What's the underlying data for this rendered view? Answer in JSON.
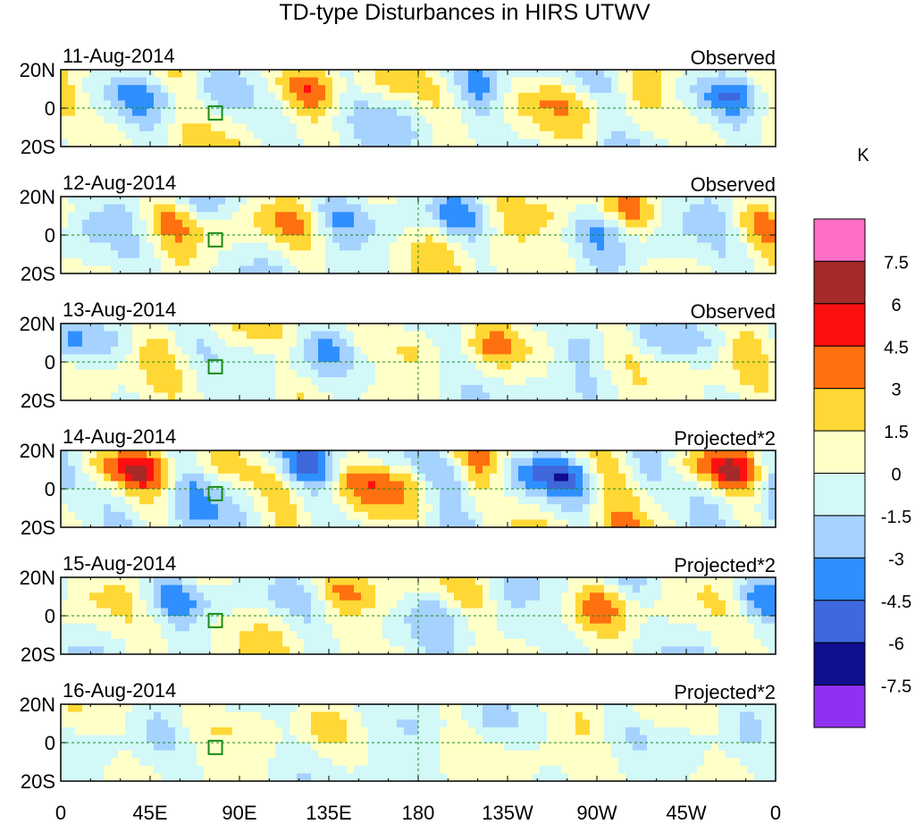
{
  "chart_data": {
    "type": "heatmap",
    "title": "TD-type Disturbances in HIRS UTWV",
    "units_label": "K",
    "x_ticks": [
      "0",
      "45E",
      "90E",
      "135E",
      "180",
      "135W",
      "90W",
      "45W",
      "0"
    ],
    "x_range_deg": [
      0,
      360
    ],
    "y_ticks": [
      "20N",
      "0",
      "20S"
    ],
    "y_range_deg": [
      -20,
      20
    ],
    "panels": [
      {
        "date": "11-Aug-2014",
        "label": "Observed",
        "amp": 1.0,
        "seed": 1
      },
      {
        "date": "12-Aug-2014",
        "label": "Observed",
        "amp": 1.0,
        "seed": 2
      },
      {
        "date": "13-Aug-2014",
        "label": "Observed",
        "amp": 0.8,
        "seed": 3
      },
      {
        "date": "14-Aug-2014",
        "label": "Projected*2",
        "amp": 1.4,
        "seed": 4
      },
      {
        "date": "15-Aug-2014",
        "label": "Projected*2",
        "amp": 0.9,
        "seed": 5
      },
      {
        "date": "16-Aug-2014",
        "label": "Projected*2",
        "amp": 0.55,
        "seed": 6
      }
    ],
    "colorbar": {
      "labels": [
        "7.5",
        "6",
        "4.5",
        "3",
        "1.5",
        "0",
        "-1.5",
        "-3",
        "-4.5",
        "-6",
        "-7.5"
      ],
      "levels": [
        9,
        7.5,
        6,
        4.5,
        3,
        1.5,
        0,
        -1.5,
        -3,
        -4.5,
        -6,
        -7.5,
        -9
      ],
      "colors": [
        "#ff6ec7",
        "#a52a2a",
        "#ff1010",
        "#ff7010",
        "#ffd835",
        "#ffffc8",
        "#d2f8f8",
        "#a6d2ff",
        "#2f8fff",
        "#3f68dc",
        "#0f0f90",
        "#9030f0"
      ]
    }
  }
}
